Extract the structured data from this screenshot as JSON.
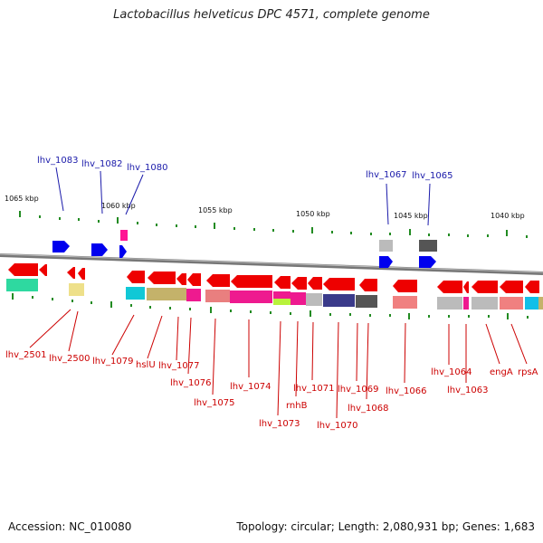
{
  "title": "Lactobacillus helveticus DPC 4571, complete genome",
  "footer": {
    "accession": "Accession: NC_010080",
    "topology": "Topology: circular; Length: 2,080,931 bp; Genes: 1,683"
  },
  "colors": {
    "forward_gene": "#0000ee",
    "reverse_gene": "#ee0000",
    "backbone": "#888888",
    "tick": "#228b22",
    "forward_label": "#1a1aaa",
    "reverse_label": "#cc0000"
  },
  "scale_labels": [
    "1065 kbp",
    "1060 kbp",
    "1055 kbp",
    "1050 kbp",
    "1045 kbp",
    "1040 kbp"
  ],
  "forward_labels": [
    "lhv_1083",
    "lhv_1082",
    "lhv_1080",
    "lhv_1067",
    "lhv_1065"
  ],
  "reverse_labels": [
    "lhv_2501",
    "lhv_2500",
    "lhv_1079",
    "hslU",
    "lhv_1077",
    "lhv_1076",
    "lhv_1075",
    "lhv_1074",
    "lhv_1073",
    "rnhB",
    "lhv_1071",
    "lhv_1070",
    "lhv_1069",
    "lhv_1068",
    "lhv_1066",
    "lhv_1064",
    "lhv_1063",
    "engA",
    "rpsA"
  ]
}
